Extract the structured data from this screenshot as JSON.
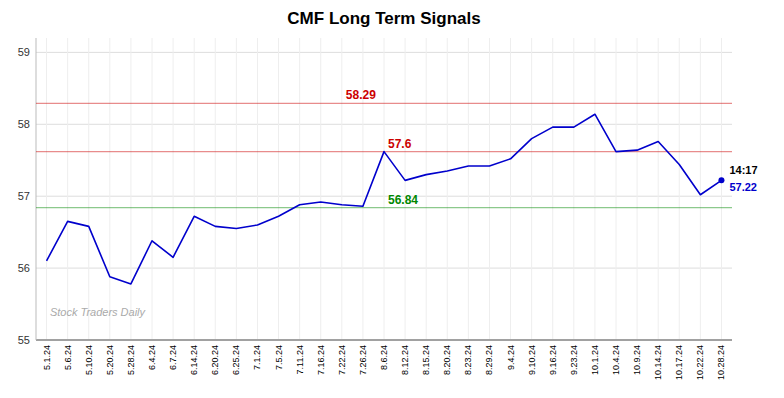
{
  "chart_data": {
    "type": "line",
    "title": "CMF Long Term Signals",
    "categories": [
      "5.1.24",
      "5.6.24",
      "5.10.24",
      "5.20.24",
      "5.28.24",
      "6.4.24",
      "6.7.24",
      "6.14.24",
      "6.20.24",
      "6.25.24",
      "7.1.24",
      "7.5.24",
      "7.11.24",
      "7.16.24",
      "7.22.24",
      "7.26.24",
      "8.6.24",
      "8.12.24",
      "8.15.24",
      "8.20.24",
      "8.23.24",
      "8.29.24",
      "9.4.24",
      "9.10.24",
      "9.16.24",
      "9.23.24",
      "10.1.24",
      "10.4.24",
      "10.9.24",
      "10.14.24",
      "10.17.24",
      "10.22.24",
      "10.28.24"
    ],
    "values": [
      56.1,
      56.65,
      56.58,
      55.88,
      55.78,
      56.38,
      56.15,
      56.72,
      56.58,
      56.55,
      56.6,
      56.72,
      56.88,
      56.92,
      56.88,
      56.86,
      57.62,
      57.22,
      57.3,
      57.35,
      57.42,
      57.42,
      57.52,
      57.8,
      57.96,
      57.96,
      58.14,
      57.62,
      57.64,
      57.76,
      57.44,
      57.02,
      57.22
    ],
    "color": "#0000cc",
    "ylim": [
      55.0,
      59.2
    ],
    "yticks": [
      55,
      56,
      57,
      58,
      59
    ],
    "grid": true,
    "reference_lines": [
      {
        "value": 58.29,
        "label": "58.29",
        "color": "#cc0000",
        "x": "7.22.24"
      },
      {
        "value": 57.62,
        "label": "57.6",
        "color": "#cc0000",
        "x": "8.6.24"
      },
      {
        "value": 56.84,
        "label": "56.84",
        "color": "#008800",
        "x": "8.6.24"
      }
    ],
    "annotations": [
      {
        "text": "14:17",
        "x": "10.28.24",
        "y": 57.22
      },
      {
        "text": "57.22",
        "x": "10.28.24",
        "y": 57.22
      }
    ],
    "watermark": "Stock Traders Daily"
  }
}
